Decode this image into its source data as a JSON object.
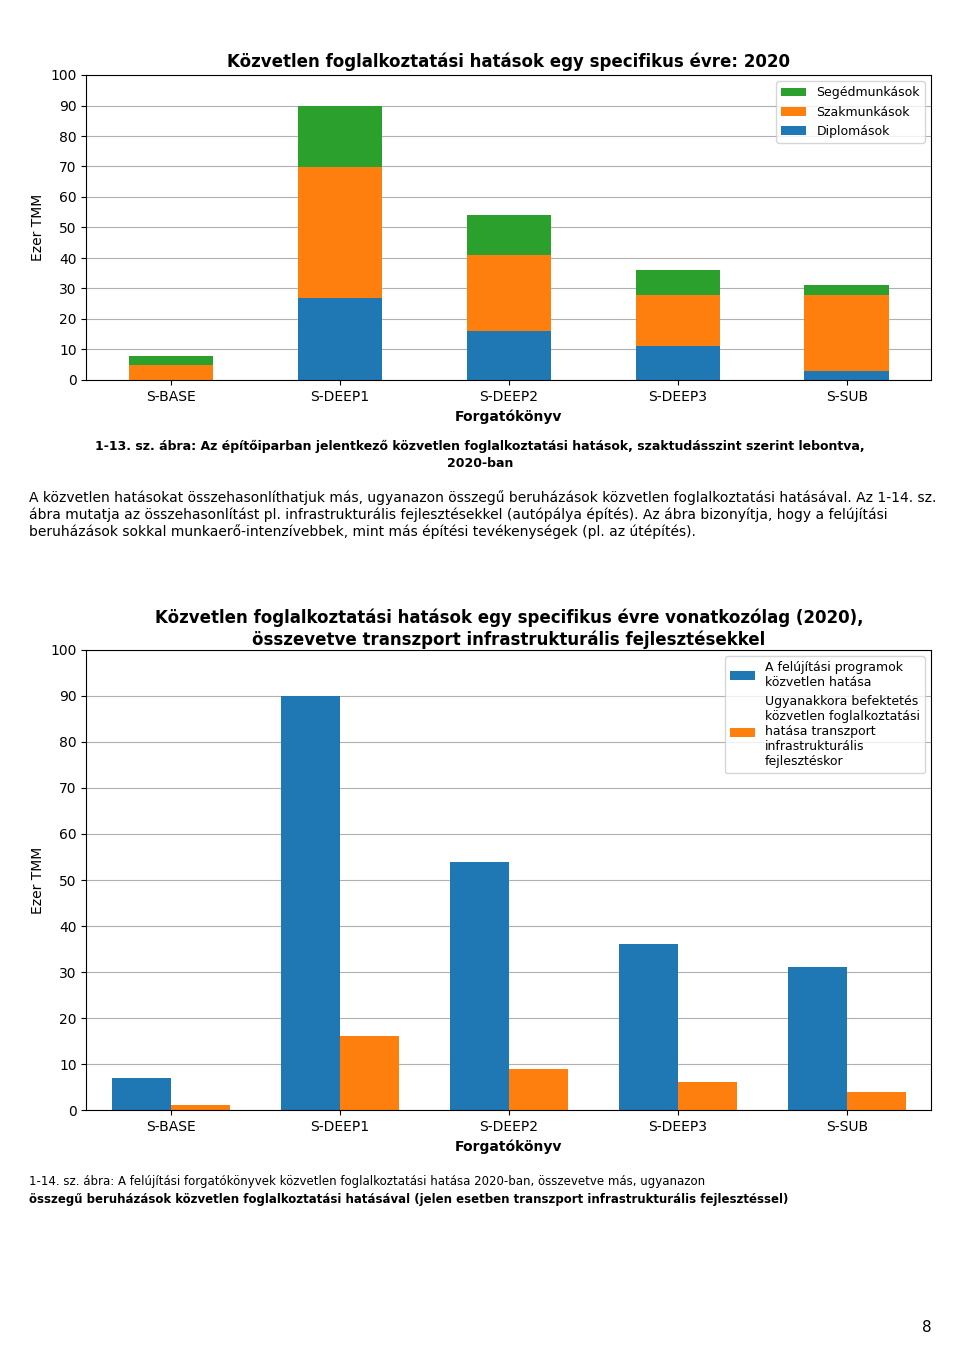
{
  "chart_data": [
    {
      "type": "bar",
      "stacked": true,
      "title": "Közvetlen foglalkoztatási hatások egy specifikus évre: 2020",
      "categories": [
        "S-BASE",
        "S-DEEP1",
        "S-DEEP2",
        "S-DEEP3",
        "S-SUB"
      ],
      "series": [
        {
          "name": "Diplomások",
          "values": [
            0,
            27,
            16,
            11,
            3
          ]
        },
        {
          "name": "Szakmunkások",
          "values": [
            5,
            43,
            25,
            17,
            25
          ]
        },
        {
          "name": "Segédmunkások",
          "values": [
            3,
            20,
            13,
            8,
            3
          ]
        }
      ],
      "xlabel": "Forgatókönyv",
      "ylabel": "Ezer TMM",
      "ylim": [
        0,
        100
      ],
      "yticks": [
        0,
        10,
        20,
        30,
        40,
        50,
        60,
        70,
        80,
        90,
        100
      ],
      "grid": true,
      "legend": "upper right",
      "annotations": [
        "1-13. sz. ábra: Az építőiparban jelentkező közvetlen foglalkoztatási hatások, szaktudásszint szerint lebontva,",
        "2020-ban",
        "A közvetlen hatásokat összehasonlíthatjuk más, ugyanazon összegű beruházások közvetlen foglalkoztatási hatásával. Az 1-14. sz. ábra mutatja az összehasonlítást pl. infrastrukturális fejlesztésekkel (autópálya építés). Az ábra bizonyítja, hogy a felújítási beruházások sokkal munkaerő-intenzívebbek, mint más építési tevékenységek (pl. az útépítés)."
      ]
    },
    {
      "type": "bar",
      "title": "Közvetlen foglalkoztatási hatások egy specifikus évre vonatkozólag (2020),\nösszevetve transzport infrastrukturális fejlesztésekkel",
      "categories": [
        "S-BASE",
        "S-DEEP1",
        "S-DEEP2",
        "S-DEEP3",
        "S-SUB"
      ],
      "series": [
        {
          "name": "A felújítási programok\nközvetlen hatása",
          "values": [
            7,
            90,
            54,
            36,
            31
          ]
        },
        {
          "name": "Ugyanakkora befektetés\nközvetlen foglalkoztatási\nhatása transzport\ninfrastrukturális\nfejlesztéskor",
          "values": [
            1,
            16,
            9,
            6,
            4
          ]
        }
      ],
      "xlabel": "Forgatókönyv",
      "ylabel": "Ezer TMM",
      "ylim": [
        0,
        100
      ],
      "yticks": [
        0,
        10,
        20,
        30,
        40,
        50,
        60,
        70,
        80,
        90,
        100
      ],
      "grid": true,
      "legend": "upper right",
      "annotations": [
        "1-14. sz. ábra: A felújítási forgatókönyvek közvetlen foglalkoztatási hatása 2020-ban, összevetve más, ugyanazon",
        "összegű beruházások közvetlen foglalkoztatási hatásával (jelen esetben transzport infrastrukturális fejlesztéssel)",
        "8"
      ]
    }
  ]
}
